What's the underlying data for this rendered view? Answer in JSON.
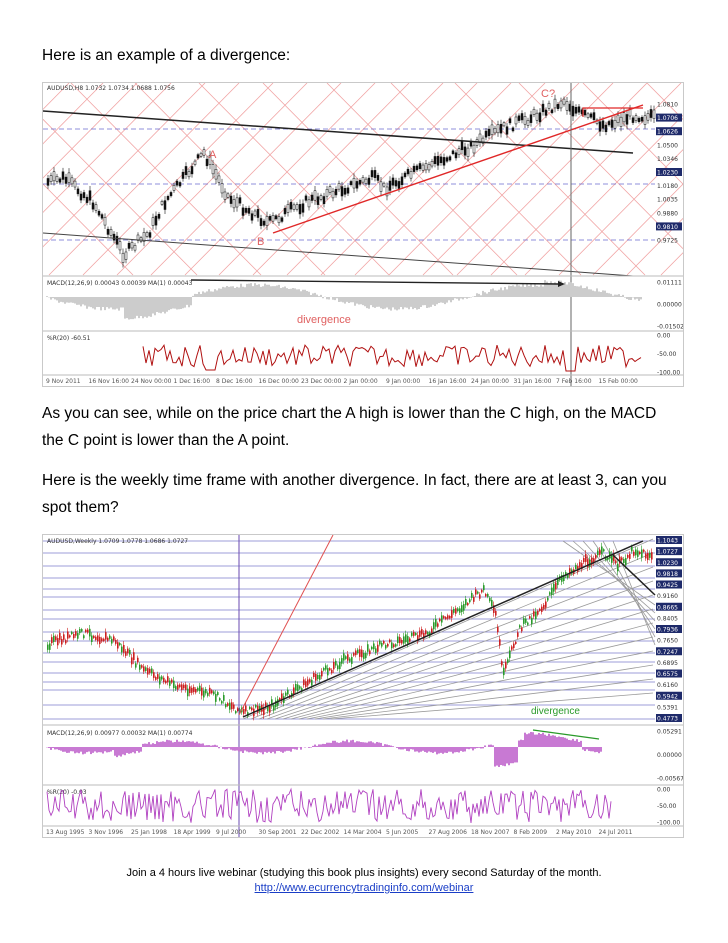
{
  "text": {
    "p1": "Here is an example of a divergence:",
    "p2": "As you can see, while on the price chart the A high is lower than the C high, on the MACD the C point is lower than the A point.",
    "p3": "Here is the weekly time frame with another divergence. In fact, there are at least 3, can you spot them?"
  },
  "chart1": {
    "title": "AUDUSD,H8  1.0732 1.0734 1.0688 1.0756",
    "price_labels": [
      "1.0810",
      "1.0706",
      "1.0626",
      "1.0500",
      "1.0346",
      "1.0230",
      "1.0180",
      "1.0035",
      "0.9880",
      "0.9810",
      "0.9725"
    ],
    "annotations": {
      "a": "A",
      "b": "B",
      "c": "C?"
    },
    "macd_label": "MACD(12,26,9) 0.00043 0.00039 MA(1) 0.00043",
    "macd_axis": [
      "0.01111",
      "0.00000",
      "-0.01502"
    ],
    "divergence_label": "divergence",
    "wpr_label": "%R(20) -60.51",
    "wpr_axis": [
      "0.00",
      "-50.00",
      "-100.00"
    ],
    "dates": [
      "9 Nov 2011",
      "16 Nov 16:00",
      "24 Nov 00:00",
      "1 Dec 16:00",
      "8 Dec 16:00",
      "16 Dec 00:00",
      "23 Dec 00:00",
      "2 Jan 00:00",
      "9 Jan 00:00",
      "16 Jan 16:00",
      "24 Jan 00:00",
      "31 Jan 16:00",
      "7 Feb 16:00",
      "15 Feb 00:00"
    ]
  },
  "chart2": {
    "title": "AUDUSD,Weekly  1.0709 1.0778 1.0686 1.0727",
    "price_labels": [
      "1.1043",
      "1.0727",
      "1.0230",
      "0.9818",
      "0.9425",
      "0.9160",
      "0.8665",
      "0.8405",
      "0.7936",
      "0.7650",
      "0.7247",
      "0.6895",
      "0.6575",
      "0.6160",
      "0.5942",
      "0.5391",
      "0.4773"
    ],
    "divergence_label": "divergence",
    "macd_label": "MACD(12,26,9) 0.00977 0.00032 MA(1) 0.00774",
    "macd_axis": [
      "0.05291",
      "0.00000",
      "-0.00567"
    ],
    "wpr_label": "%R(20) -0.03",
    "wpr_axis": [
      "0.00",
      "-50.00",
      "-100.00"
    ],
    "dates": [
      "13 Aug 1995",
      "3 Nov 1996",
      "25 Jan 1998",
      "18 Apr 1999",
      "9 Jul 2000",
      "30 Sep 2001",
      "22 Dec 2002",
      "14 Mar 2004",
      "5 Jun 2005",
      "27 Aug 2006",
      "18 Nov 2007",
      "8 Feb 2009",
      "2 May 2010",
      "24 Jul 2011"
    ]
  },
  "footer": {
    "line1": "Join a 4 hours live webinar (studying this book plus insights) every second Saturday of the month.",
    "link": "http://www.ecurrencytradinginfo.com/webinar"
  },
  "colors": {
    "bull": "#2a9a2a",
    "bear": "#cc2020",
    "trend": "#e02828",
    "macd1": "#9a9a9a",
    "macd2": "#b040c0",
    "wpr1": "#b01010",
    "wpr2": "#b040c0",
    "div": "#2a9a2a"
  }
}
